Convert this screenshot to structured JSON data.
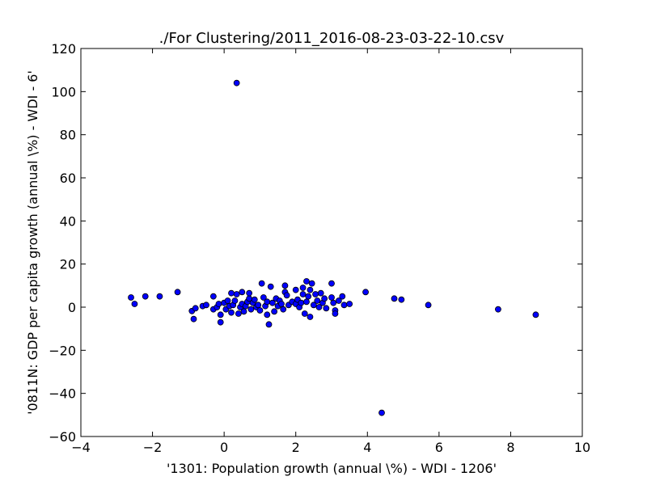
{
  "chart_data": {
    "type": "scatter",
    "title": "./For Clustering/2011_2016-08-23-03-22-10.csv",
    "xlabel": "'1301: Population growth  (annual \\%) - WDI - 1206'",
    "ylabel": "'0811N: GDP per capita growth  (annual \\%) - WDI - 6'",
    "xlim": [
      -4,
      10
    ],
    "ylim": [
      -60,
      120
    ],
    "xticks": [
      -4,
      -2,
      0,
      2,
      4,
      6,
      8,
      10
    ],
    "yticks": [
      -60,
      -40,
      -20,
      0,
      20,
      40,
      60,
      80,
      100,
      120
    ],
    "xtick_labels": [
      "−4",
      "−2",
      "0",
      "2",
      "4",
      "6",
      "8",
      "10"
    ],
    "ytick_labels": [
      "−60",
      "−40",
      "−20",
      "0",
      "20",
      "40",
      "60",
      "80",
      "100",
      "120"
    ],
    "grid": false,
    "marker_color": "#0000ff",
    "marker_edge_color": "#000000",
    "points": [
      [
        -2.6,
        4.5
      ],
      [
        -2.5,
        1.5
      ],
      [
        -2.2,
        5.0
      ],
      [
        -1.8,
        5.0
      ],
      [
        -1.3,
        7.0
      ],
      [
        -0.9,
        -1.8
      ],
      [
        -0.85,
        -5.5
      ],
      [
        -0.8,
        -0.5
      ],
      [
        -0.6,
        0.5
      ],
      [
        -0.5,
        1.0
      ],
      [
        -0.3,
        5.0
      ],
      [
        -0.3,
        -1.0
      ],
      [
        -0.2,
        0.0
      ],
      [
        -0.15,
        1.5
      ],
      [
        -0.1,
        -3.5
      ],
      [
        -0.1,
        -7.0
      ],
      [
        0.0,
        2.0
      ],
      [
        0.05,
        -1.0
      ],
      [
        0.1,
        3.0
      ],
      [
        0.15,
        0.5
      ],
      [
        0.2,
        6.5
      ],
      [
        0.2,
        -2.5
      ],
      [
        0.25,
        1.0
      ],
      [
        0.3,
        3.0
      ],
      [
        0.35,
        6.0
      ],
      [
        0.4,
        -3.0
      ],
      [
        0.45,
        0.0
      ],
      [
        0.5,
        7.0
      ],
      [
        0.5,
        1.5
      ],
      [
        0.55,
        -2.0
      ],
      [
        0.6,
        0.5
      ],
      [
        0.65,
        2.5
      ],
      [
        0.7,
        4.0
      ],
      [
        0.7,
        6.5
      ],
      [
        0.75,
        -1.0
      ],
      [
        0.8,
        2.0
      ],
      [
        0.85,
        3.5
      ],
      [
        0.9,
        0.0
      ],
      [
        0.95,
        1.0
      ],
      [
        1.0,
        -1.5
      ],
      [
        1.05,
        11.0
      ],
      [
        1.1,
        4.5
      ],
      [
        1.15,
        0.5
      ],
      [
        1.2,
        2.5
      ],
      [
        1.2,
        -3.5
      ],
      [
        1.25,
        -8.0
      ],
      [
        1.3,
        9.5
      ],
      [
        1.35,
        2.0
      ],
      [
        1.4,
        -2.0
      ],
      [
        1.45,
        4.0
      ],
      [
        1.5,
        0.5
      ],
      [
        1.55,
        3.0
      ],
      [
        1.6,
        1.5
      ],
      [
        1.65,
        -1.0
      ],
      [
        1.7,
        10.0
      ],
      [
        1.7,
        7.0
      ],
      [
        1.75,
        5.5
      ],
      [
        1.8,
        1.0
      ],
      [
        1.9,
        2.5
      ],
      [
        2.0,
        1.5
      ],
      [
        2.0,
        8.0
      ],
      [
        2.05,
        3.5
      ],
      [
        2.1,
        0.0
      ],
      [
        2.15,
        2.0
      ],
      [
        2.2,
        6.0
      ],
      [
        2.2,
        9.0
      ],
      [
        2.25,
        -3.0
      ],
      [
        2.3,
        12.0
      ],
      [
        2.3,
        2.5
      ],
      [
        2.35,
        5.0
      ],
      [
        2.4,
        -4.5
      ],
      [
        2.4,
        8.0
      ],
      [
        2.45,
        11.0
      ],
      [
        2.5,
        1.0
      ],
      [
        2.55,
        6.0
      ],
      [
        2.6,
        3.0
      ],
      [
        2.65,
        0.0
      ],
      [
        2.7,
        6.5
      ],
      [
        2.75,
        2.0
      ],
      [
        2.8,
        4.0
      ],
      [
        2.85,
        -0.5
      ],
      [
        3.0,
        11.0
      ],
      [
        3.0,
        4.5
      ],
      [
        3.05,
        2.0
      ],
      [
        3.1,
        -1.5
      ],
      [
        3.1,
        -3.0
      ],
      [
        3.2,
        3.0
      ],
      [
        3.3,
        5.0
      ],
      [
        3.35,
        1.0
      ],
      [
        3.5,
        1.5
      ],
      [
        3.95,
        7.0
      ],
      [
        4.4,
        -49.0
      ],
      [
        4.75,
        4.0
      ],
      [
        4.95,
        3.5
      ],
      [
        5.7,
        1.0
      ],
      [
        7.65,
        -1.0
      ],
      [
        8.7,
        -3.5
      ],
      [
        0.35,
        104.0
      ]
    ]
  }
}
